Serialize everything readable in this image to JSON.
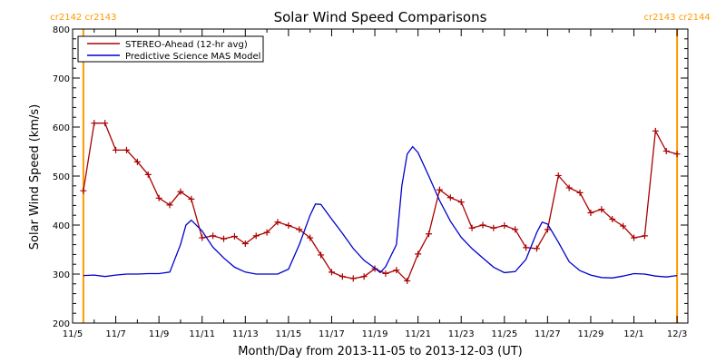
{
  "chart_data": {
    "type": "line",
    "title": "Solar Wind Speed Comparisons",
    "xlabel": "Month/Day from 2013-11-05 to 2013-12-03 (UT)",
    "ylabel": "Solar Wind Speed (km/s)",
    "xlim": [
      "2013-11-05 00:00",
      "2013-12-03 12:00"
    ],
    "ylim": [
      200,
      800
    ],
    "x_ticks": [
      "11/5",
      "11/7",
      "11/9",
      "11/11",
      "11/13",
      "11/15",
      "11/17",
      "11/19",
      "11/21",
      "11/23",
      "11/25",
      "11/27",
      "11/29",
      "12/1",
      "12/3"
    ],
    "y_ticks": [
      200,
      300,
      400,
      500,
      600,
      700,
      800
    ],
    "grid": false,
    "legend_position": "top-left",
    "rotation_markers": [
      {
        "time": "2013-11-05 12:00",
        "label": "cr2142 cr2143",
        "color": "#ff9900"
      },
      {
        "time": "2013-12-03 00:00",
        "label": "cr2143 cr2144",
        "color": "#ff9900"
      }
    ],
    "series": [
      {
        "name": "STEREO-Ahead (12-hr avg)",
        "color": "#aa0000",
        "marker": "plus",
        "points": [
          [
            "2013-11-05 12:00",
            470
          ],
          [
            "2013-11-06 00:00",
            608
          ],
          [
            "2013-11-06 12:00",
            608
          ],
          [
            "2013-11-07 00:00",
            553
          ],
          [
            "2013-11-07 12:00",
            553
          ],
          [
            "2013-11-08 00:00",
            529
          ],
          [
            "2013-11-08 12:00",
            503
          ],
          [
            "2013-11-09 00:00",
            455
          ],
          [
            "2013-11-09 12:00",
            441
          ],
          [
            "2013-11-10 00:00",
            468
          ],
          [
            "2013-11-10 12:00",
            453
          ],
          [
            "2013-11-11 00:00",
            374
          ],
          [
            "2013-11-11 12:00",
            378
          ],
          [
            "2013-11-12 00:00",
            372
          ],
          [
            "2013-11-12 12:00",
            377
          ],
          [
            "2013-11-13 00:00",
            362
          ],
          [
            "2013-11-13 12:00",
            378
          ],
          [
            "2013-11-14 00:00",
            385
          ],
          [
            "2013-11-14 12:00",
            406
          ],
          [
            "2013-11-15 00:00",
            399
          ],
          [
            "2013-11-15 12:00",
            391
          ],
          [
            "2013-11-16 00:00",
            374
          ],
          [
            "2013-11-16 12:00",
            339
          ],
          [
            "2013-11-17 00:00",
            304
          ],
          [
            "2013-11-17 12:00",
            295
          ],
          [
            "2013-11-18 00:00",
            291
          ],
          [
            "2013-11-18 12:00",
            295
          ],
          [
            "2013-11-19 00:00",
            311
          ],
          [
            "2013-11-19 12:00",
            301
          ],
          [
            "2013-11-20 00:00",
            308
          ],
          [
            "2013-11-20 12:00",
            286
          ],
          [
            "2013-11-21 00:00",
            341
          ],
          [
            "2013-11-21 12:00",
            382
          ],
          [
            "2013-11-22 00:00",
            472
          ],
          [
            "2013-11-22 12:00",
            456
          ],
          [
            "2013-11-23 00:00",
            447
          ],
          [
            "2013-11-23 12:00",
            394
          ],
          [
            "2013-11-24 00:00",
            400
          ],
          [
            "2013-11-24 12:00",
            394
          ],
          [
            "2013-11-25 00:00",
            399
          ],
          [
            "2013-11-25 12:00",
            391
          ],
          [
            "2013-11-26 00:00",
            354
          ],
          [
            "2013-11-26 12:00",
            352
          ],
          [
            "2013-11-27 00:00",
            391
          ],
          [
            "2013-11-27 12:00",
            501
          ],
          [
            "2013-11-28 00:00",
            476
          ],
          [
            "2013-11-28 12:00",
            466
          ],
          [
            "2013-11-29 00:00",
            425
          ],
          [
            "2013-11-29 12:00",
            432
          ],
          [
            "2013-11-30 00:00",
            412
          ],
          [
            "2013-11-30 12:00",
            398
          ],
          [
            "2013-12-01 00:00",
            374
          ],
          [
            "2013-12-01 12:00",
            378
          ],
          [
            "2013-12-02 00:00",
            592
          ],
          [
            "2013-12-02 12:00",
            551
          ],
          [
            "2013-12-03 00:00",
            545
          ]
        ]
      },
      {
        "name": "Predictive Science MAS Model",
        "color": "#0000cc",
        "marker": "none",
        "points": [
          [
            "2013-11-05 12:00",
            297
          ],
          [
            "2013-11-06 00:00",
            298
          ],
          [
            "2013-11-06 12:00",
            295
          ],
          [
            "2013-11-07 00:00",
            298
          ],
          [
            "2013-11-07 12:00",
            300
          ],
          [
            "2013-11-08 00:00",
            300
          ],
          [
            "2013-11-08 12:00",
            301
          ],
          [
            "2013-11-09 00:00",
            301
          ],
          [
            "2013-11-09 12:00",
            304
          ],
          [
            "2013-11-10 00:00",
            360
          ],
          [
            "2013-11-10 06:00",
            400
          ],
          [
            "2013-11-10 12:00",
            410
          ],
          [
            "2013-11-11 00:00",
            388
          ],
          [
            "2013-11-11 12:00",
            355
          ],
          [
            "2013-11-12 00:00",
            333
          ],
          [
            "2013-11-12 12:00",
            314
          ],
          [
            "2013-11-13 00:00",
            304
          ],
          [
            "2013-11-13 12:00",
            300
          ],
          [
            "2013-11-14 00:00",
            300
          ],
          [
            "2013-11-14 12:00",
            300
          ],
          [
            "2013-11-15 00:00",
            310
          ],
          [
            "2013-11-15 12:00",
            360
          ],
          [
            "2013-11-16 00:00",
            420
          ],
          [
            "2013-11-16 06:00",
            443
          ],
          [
            "2013-11-16 12:00",
            442
          ],
          [
            "2013-11-17 00:00",
            412
          ],
          [
            "2013-11-17 12:00",
            383
          ],
          [
            "2013-11-18 00:00",
            352
          ],
          [
            "2013-11-18 12:00",
            328
          ],
          [
            "2013-11-19 00:00",
            312
          ],
          [
            "2013-11-19 06:00",
            303
          ],
          [
            "2013-11-19 12:00",
            315
          ],
          [
            "2013-11-20 00:00",
            360
          ],
          [
            "2013-11-20 06:00",
            480
          ],
          [
            "2013-11-20 12:00",
            545
          ],
          [
            "2013-11-20 18:00",
            560
          ],
          [
            "2013-11-21 00:00",
            548
          ],
          [
            "2013-11-21 12:00",
            500
          ],
          [
            "2013-11-22 00:00",
            450
          ],
          [
            "2013-11-22 12:00",
            408
          ],
          [
            "2013-11-23 00:00",
            375
          ],
          [
            "2013-11-23 12:00",
            352
          ],
          [
            "2013-11-24 00:00",
            333
          ],
          [
            "2013-11-24 12:00",
            314
          ],
          [
            "2013-11-25 00:00",
            303
          ],
          [
            "2013-11-25 12:00",
            305
          ],
          [
            "2013-11-26 00:00",
            330
          ],
          [
            "2013-11-26 12:00",
            385
          ],
          [
            "2013-11-26 18:00",
            406
          ],
          [
            "2013-11-27 00:00",
            402
          ],
          [
            "2013-11-27 12:00",
            365
          ],
          [
            "2013-11-28 00:00",
            325
          ],
          [
            "2013-11-28 12:00",
            307
          ],
          [
            "2013-11-29 00:00",
            298
          ],
          [
            "2013-11-29 12:00",
            293
          ],
          [
            "2013-11-30 00:00",
            292
          ],
          [
            "2013-11-30 12:00",
            296
          ],
          [
            "2013-12-01 00:00",
            301
          ],
          [
            "2013-12-01 12:00",
            300
          ],
          [
            "2013-12-02 00:00",
            296
          ],
          [
            "2013-12-02 12:00",
            294
          ],
          [
            "2013-12-03 00:00",
            297
          ]
        ]
      }
    ]
  }
}
